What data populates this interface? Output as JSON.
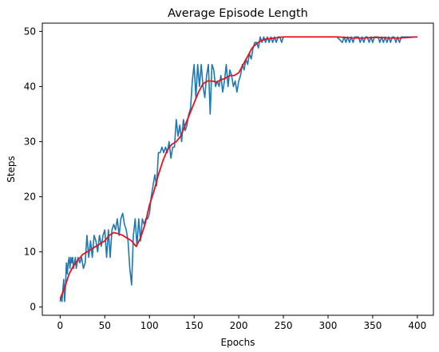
{
  "chart_data": {
    "type": "line",
    "title": "Average Episode Length",
    "xlabel": "Epochs",
    "ylabel": "Steps",
    "xlim": [
      -20,
      418
    ],
    "ylim": [
      -1.5,
      51.5
    ],
    "xticks": [
      0,
      50,
      100,
      150,
      200,
      250,
      300,
      350,
      400
    ],
    "yticks": [
      0,
      10,
      20,
      30,
      40,
      50
    ],
    "grid": false,
    "legend": "none",
    "series": [
      {
        "color": "#1f77b4",
        "x": [
          0,
          1,
          2,
          3,
          4,
          5,
          6,
          7,
          8,
          9,
          10,
          11,
          12,
          13,
          14,
          15,
          16,
          17,
          18,
          19,
          20,
          22,
          24,
          26,
          28,
          30,
          32,
          34,
          36,
          38,
          40,
          42,
          44,
          46,
          48,
          50,
          52,
          54,
          56,
          58,
          60,
          62,
          64,
          66,
          68,
          70,
          72,
          74,
          76,
          78,
          80,
          82,
          84,
          86,
          88,
          90,
          92,
          94,
          96,
          98,
          100,
          102,
          104,
          106,
          108,
          110,
          112,
          114,
          116,
          118,
          120,
          122,
          124,
          126,
          128,
          130,
          132,
          134,
          136,
          138,
          140,
          142,
          144,
          146,
          148,
          150,
          152,
          154,
          156,
          158,
          160,
          162,
          164,
          166,
          168,
          170,
          172,
          174,
          176,
          178,
          180,
          182,
          184,
          186,
          188,
          190,
          192,
          194,
          196,
          198,
          200,
          202,
          204,
          206,
          208,
          210,
          212,
          214,
          216,
          218,
          220,
          222,
          224,
          226,
          228,
          230,
          232,
          234,
          236,
          238,
          240,
          242,
          244,
          246,
          248,
          250,
          260,
          270,
          280,
          290,
          300,
          310,
          316,
          318,
          320,
          322,
          324,
          326,
          328,
          330,
          332,
          334,
          336,
          338,
          340,
          342,
          344,
          346,
          348,
          350,
          352,
          354,
          356,
          358,
          360,
          362,
          364,
          366,
          368,
          370,
          372,
          374,
          376,
          378,
          380,
          382,
          384,
          386,
          388,
          390,
          392,
          394,
          396,
          398,
          400
        ],
        "y": [
          1,
          2,
          1,
          3,
          5,
          1,
          4,
          8,
          6,
          8,
          9,
          7,
          9,
          8,
          9,
          7,
          8,
          9,
          7,
          8,
          9,
          8,
          9,
          7,
          8,
          13,
          9,
          12,
          9,
          13,
          12,
          10,
          13,
          11,
          13,
          14,
          9,
          14,
          9,
          14,
          15,
          14,
          16,
          13,
          16,
          17,
          15,
          14,
          12,
          7,
          4,
          13,
          16,
          11,
          16,
          12,
          16,
          15,
          16,
          16,
          17,
          20,
          22,
          24,
          22,
          28,
          28,
          29,
          28,
          29,
          28,
          30,
          27,
          29,
          29,
          34,
          31,
          33,
          30,
          34,
          32,
          33,
          35,
          36,
          41,
          44,
          38,
          44,
          40,
          44,
          40,
          38,
          42,
          44,
          35,
          44,
          43,
          40,
          41,
          40,
          42,
          39,
          41,
          44,
          40,
          43,
          42,
          40,
          41,
          39,
          41,
          42,
          44,
          43,
          45,
          44,
          46,
          45,
          47,
          48,
          48,
          47,
          49,
          48,
          49,
          48,
          49,
          48,
          49,
          48,
          49,
          48,
          49,
          49,
          48,
          49,
          49,
          49,
          49,
          49,
          49,
          49,
          48,
          49,
          48,
          49,
          48,
          49,
          48,
          49,
          49,
          49,
          48,
          49,
          48,
          49,
          49,
          48,
          49,
          48,
          49,
          49,
          49,
          48,
          49,
          48,
          49,
          48,
          49,
          48,
          49,
          49,
          48,
          49,
          48,
          49,
          49,
          49,
          49,
          49,
          49,
          49,
          49,
          49,
          49
        ]
      },
      {
        "color": "#e8101b",
        "x": [
          0,
          5,
          10,
          15,
          20,
          25,
          30,
          40,
          45,
          50,
          55,
          60,
          65,
          70,
          75,
          80,
          85,
          90,
          95,
          100,
          105,
          110,
          115,
          120,
          125,
          130,
          135,
          140,
          145,
          150,
          155,
          160,
          165,
          170,
          175,
          180,
          185,
          190,
          195,
          200,
          205,
          210,
          215,
          220,
          225,
          230,
          240,
          250,
          260,
          280,
          300,
          310,
          320,
          330,
          340,
          350,
          360,
          370,
          380,
          390,
          400
        ],
        "y": [
          1.5,
          3.5,
          6,
          7.5,
          8.5,
          9.5,
          10,
          11,
          11.5,
          12,
          13,
          13.5,
          13.3,
          13,
          12.5,
          12,
          11,
          12.5,
          15,
          18.5,
          21,
          24,
          26.5,
          28.5,
          29.5,
          30,
          31,
          33,
          35,
          37,
          39,
          40.5,
          41,
          41,
          40.8,
          41.2,
          41.5,
          42,
          42,
          42.5,
          44,
          45.5,
          47,
          47.8,
          48.3,
          48.6,
          48.8,
          49,
          49,
          49,
          49,
          49,
          48.9,
          48.8,
          48.8,
          48.9,
          48.9,
          48.8,
          48.8,
          48.9,
          49
        ]
      }
    ]
  }
}
